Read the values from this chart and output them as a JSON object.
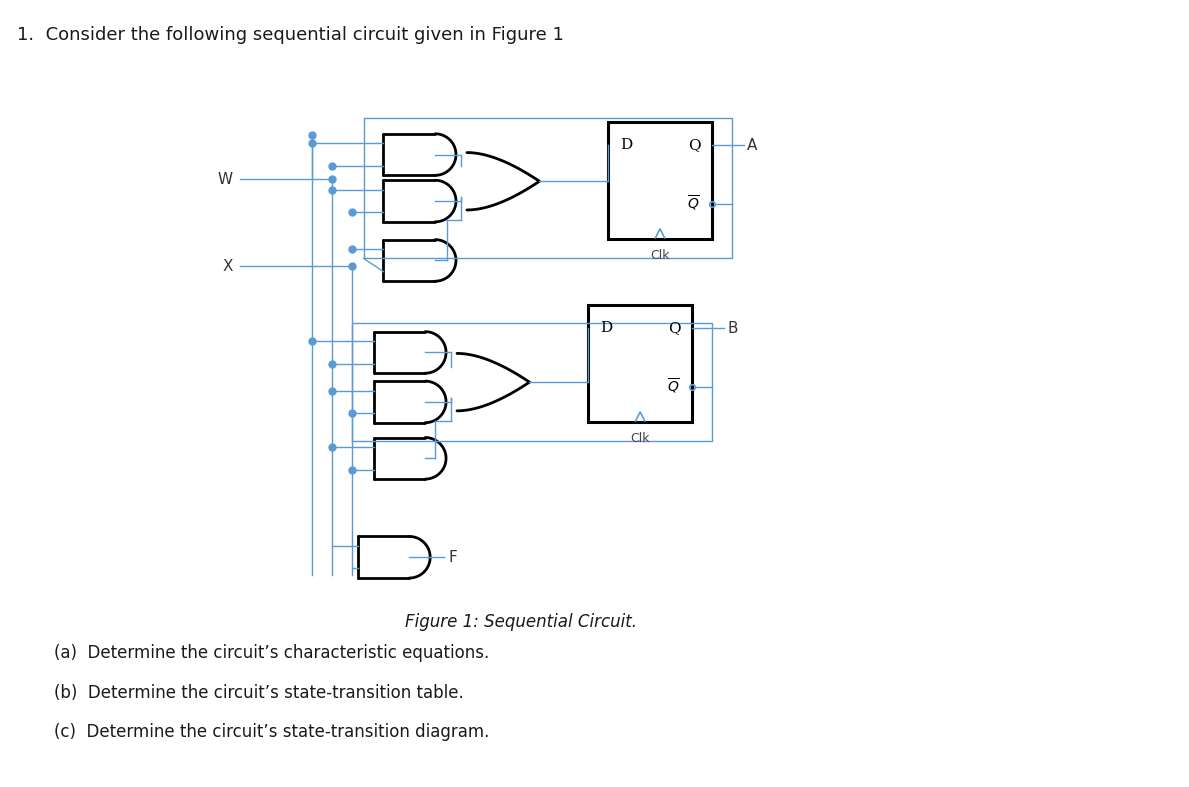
{
  "title": "1.  Consider the following sequential circuit given in Figure 1",
  "figure_caption": "Figure 1: Sequential Circuit.",
  "questions": [
    "(a)  Determine the circuit’s characteristic equations.",
    "(b)  Determine the circuit’s state-transition table.",
    "(c)  Determine the circuit’s state-transition diagram."
  ],
  "wire_color": "#5b9bd5",
  "gate_color": "#000000",
  "ff_color": "#000000",
  "bg_color": "#ffffff",
  "title_fontsize": 13,
  "caption_fontsize": 12,
  "question_fontsize": 12
}
